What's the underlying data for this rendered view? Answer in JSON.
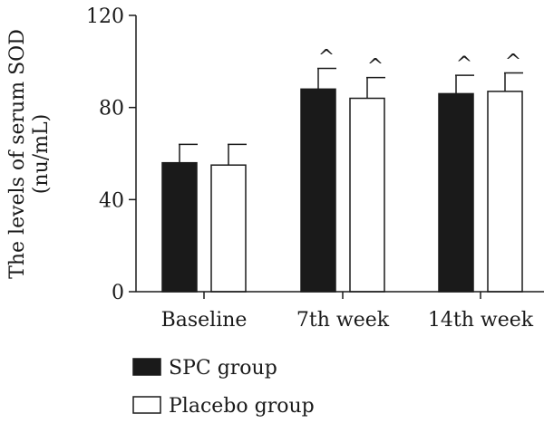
{
  "chart_data": {
    "type": "bar",
    "categories": [
      "Baseline",
      "7th week",
      "14th week"
    ],
    "series": [
      {
        "name": "SPC group",
        "values": [
          56,
          88,
          86
        ],
        "errors": [
          8,
          9,
          8
        ],
        "markers": [
          "",
          "^",
          "^"
        ],
        "color": "#1a1a1a"
      },
      {
        "name": "Placebo group",
        "values": [
          55,
          84,
          87
        ],
        "errors": [
          9,
          9,
          8
        ],
        "markers": [
          "",
          "^",
          "^"
        ],
        "color": "#ffffff"
      }
    ],
    "ylabel_line1": "The levels of serum SOD",
    "ylabel_line2": "(nu/mL)",
    "ylim": [
      0,
      120
    ],
    "yticks": [
      0,
      40,
      80,
      120
    ],
    "grid": false,
    "legend": "bottom-left"
  }
}
